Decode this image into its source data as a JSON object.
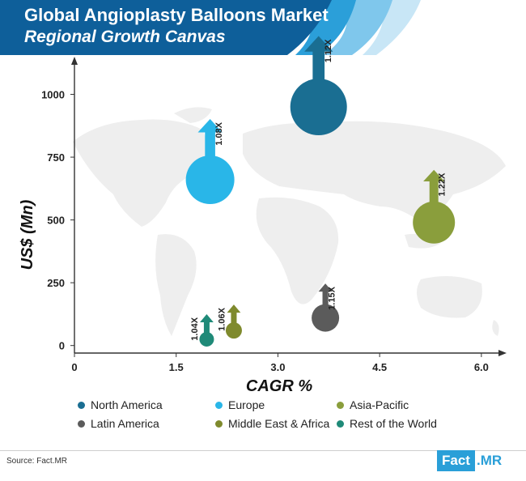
{
  "header": {
    "title": "Global Angioplasty Balloons Market",
    "subtitle": "Regional Growth Canvas"
  },
  "chart_data": {
    "type": "scatter",
    "xlabel": "CAGR %",
    "ylabel": "US$ (Mn)",
    "xlim": [
      0,
      6.3
    ],
    "ylim": [
      -30,
      1150
    ],
    "x_ticks": [
      "0",
      "1.5",
      "3.0",
      "4.5",
      "6.0"
    ],
    "x_tick_values": [
      0,
      1.5,
      3.0,
      4.5,
      6.0
    ],
    "y_ticks": [
      "0",
      "250",
      "500",
      "750",
      "1000"
    ],
    "y_tick_values": [
      0,
      250,
      500,
      750,
      1000
    ],
    "grid": false,
    "legend_position": "bottom",
    "series": [
      {
        "name": "North America",
        "x": 3.6,
        "y": 950,
        "multiplier": "1.12X",
        "color": "#1a6e92",
        "size": 35
      },
      {
        "name": "Europe",
        "x": 2.0,
        "y": 660,
        "multiplier": "1.08X",
        "color": "#29b6e8",
        "size": 30
      },
      {
        "name": "Asia-Pacific",
        "x": 5.3,
        "y": 490,
        "multiplier": "1.22X",
        "color": "#8a9e3c",
        "size": 26
      },
      {
        "name": "Latin America",
        "x": 3.7,
        "y": 110,
        "multiplier": "1.15X",
        "color": "#5b5b5b",
        "size": 17
      },
      {
        "name": "Middle East & Africa",
        "x": 2.35,
        "y": 60,
        "multiplier": "1.06X",
        "color": "#7f8a2d",
        "size": 10
      },
      {
        "name": "Rest of the World",
        "x": 1.95,
        "y": 25,
        "multiplier": "1.04X",
        "color": "#1f8a78",
        "size": 9
      }
    ]
  },
  "footer": {
    "source": "Source: Fact.MR",
    "logo_fact": "Fact",
    "logo_mr": ".MR"
  },
  "colors": {
    "banner": "#0e5f9a",
    "accent": "#2a9fd8",
    "map": "#eeeeee"
  }
}
